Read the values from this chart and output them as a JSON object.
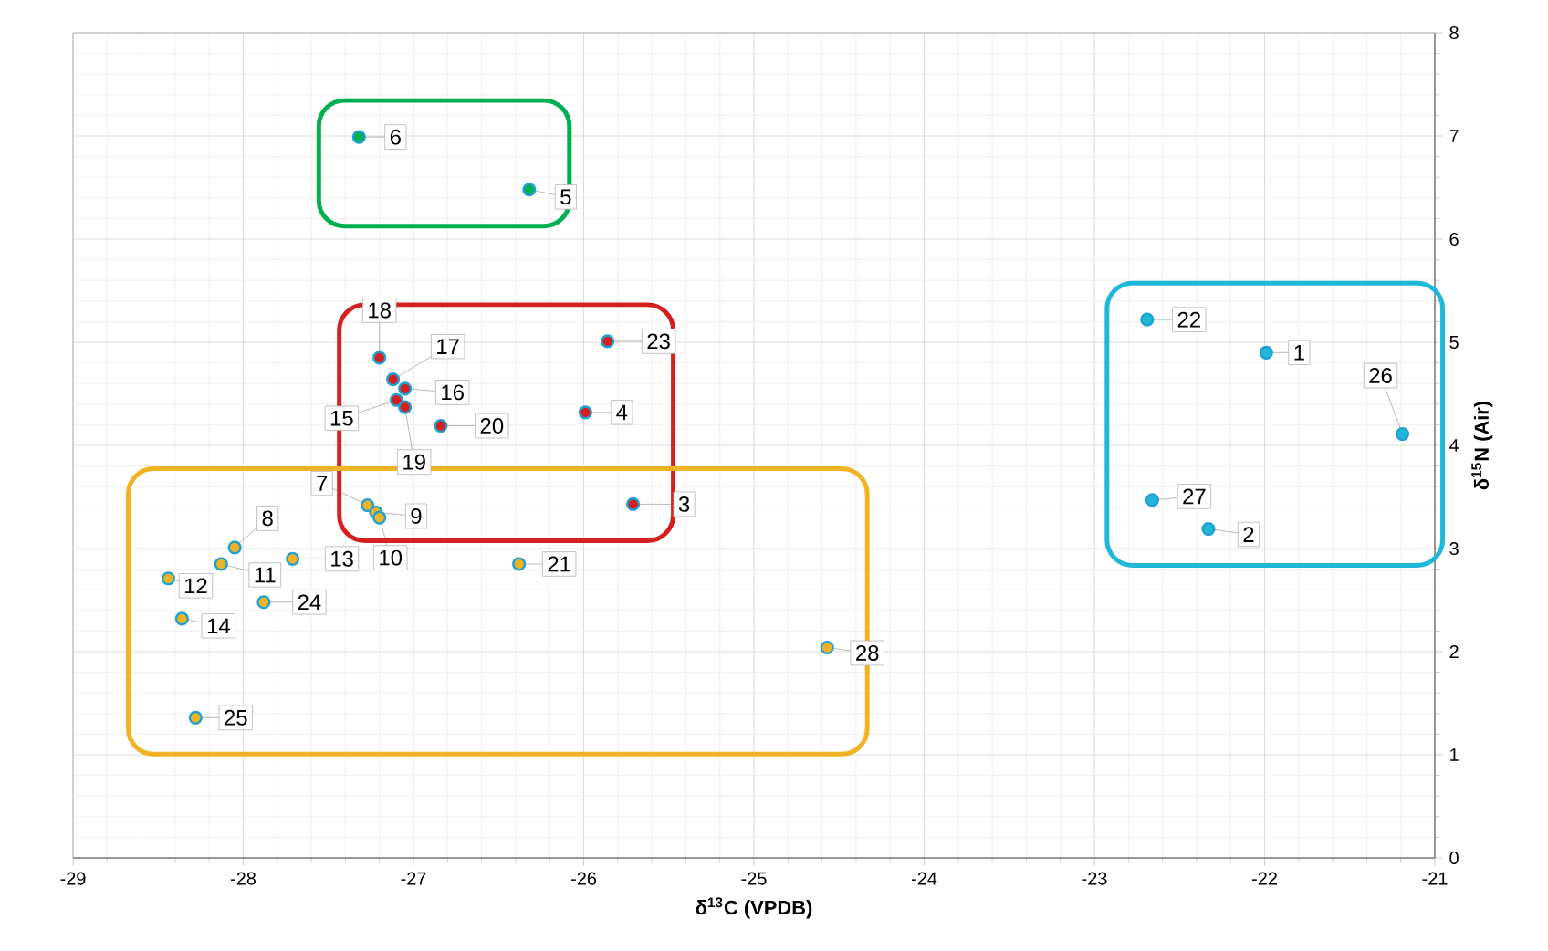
{
  "chart_data": {
    "type": "scatter",
    "xlabel": "δ$^{13}$C (VPDB)",
    "ylabel": "δ$^{15}$N (Air)",
    "xlim": [
      -29,
      -21
    ],
    "ylim": [
      0,
      8
    ],
    "xticks": [
      -29,
      -28,
      -27,
      -26,
      -25,
      -24,
      -23,
      -22,
      -21
    ],
    "yticks": [
      0,
      1,
      2,
      3,
      4,
      5,
      6,
      7,
      8
    ],
    "grid": true,
    "marker": "circle",
    "series": [
      {
        "color": "#00b050",
        "x": [
          -27.32,
          -26.32
        ],
        "values": [
          6.99,
          6.48
        ]
      },
      {
        "color": "#d42020",
        "x": [
          -27.2,
          -27.12,
          -27.05,
          -27.1,
          -27.05,
          -26.84,
          -25.86,
          -25.99,
          -25.71
        ],
        "values": [
          4.85,
          4.64,
          4.55,
          4.44,
          4.37,
          4.19,
          5.01,
          4.32,
          3.43
        ]
      },
      {
        "color": "#f0b323",
        "x": [
          -27.27,
          -27.22,
          -27.2,
          -28.05,
          -28.13,
          -28.44,
          -27.71,
          -28.36,
          -27.88,
          -28.28,
          -26.38,
          -24.57
        ],
        "values": [
          3.42,
          3.35,
          3.3,
          3.01,
          2.85,
          2.71,
          2.9,
          2.32,
          2.48,
          1.36,
          2.85,
          2.04
        ]
      },
      {
        "color": "#1fb8d8",
        "x": [
          -22.69,
          -21.99,
          -21.19,
          -22.66,
          -22.33
        ],
        "values": [
          5.22,
          4.9,
          4.11,
          3.47,
          3.19
        ]
      }
    ],
    "annotations": [
      {
        "text": "1",
        "x": -21.99,
        "y": 4.9
      },
      {
        "text": "2",
        "x": -22.33,
        "y": 3.19
      },
      {
        "text": "3",
        "x": -25.71,
        "y": 3.43
      },
      {
        "text": "4",
        "x": -25.99,
        "y": 4.32
      },
      {
        "text": "5",
        "x": -26.32,
        "y": 6.48
      },
      {
        "text": "6",
        "x": -27.32,
        "y": 6.99
      },
      {
        "text": "7",
        "x": -27.27,
        "y": 3.42
      },
      {
        "text": "8",
        "x": -28.05,
        "y": 3.01
      },
      {
        "text": "9",
        "x": -27.22,
        "y": 3.35
      },
      {
        "text": "10",
        "x": -27.2,
        "y": 3.3
      },
      {
        "text": "11",
        "x": -28.13,
        "y": 2.85
      },
      {
        "text": "12",
        "x": -28.44,
        "y": 2.71
      },
      {
        "text": "13",
        "x": -27.71,
        "y": 2.9
      },
      {
        "text": "14",
        "x": -28.36,
        "y": 2.32
      },
      {
        "text": "15",
        "x": -27.1,
        "y": 4.44
      },
      {
        "text": "16",
        "x": -27.05,
        "y": 4.55
      },
      {
        "text": "17",
        "x": -27.12,
        "y": 4.64
      },
      {
        "text": "18",
        "x": -27.2,
        "y": 4.85
      },
      {
        "text": "19",
        "x": -27.05,
        "y": 4.37
      },
      {
        "text": "20",
        "x": -26.84,
        "y": 4.19
      },
      {
        "text": "21",
        "x": -26.38,
        "y": 2.85
      },
      {
        "text": "22",
        "x": -22.69,
        "y": 5.22
      },
      {
        "text": "23",
        "x": -25.86,
        "y": 5.01
      },
      {
        "text": "24",
        "x": -27.88,
        "y": 2.48
      },
      {
        "text": "25",
        "x": -28.28,
        "y": 1.36
      },
      {
        "text": "26",
        "x": -21.19,
        "y": 4.11
      },
      {
        "text": "27",
        "x": -22.66,
        "y": 3.47
      },
      {
        "text": "28",
        "x": -24.57,
        "y": 2.04
      }
    ]
  }
}
